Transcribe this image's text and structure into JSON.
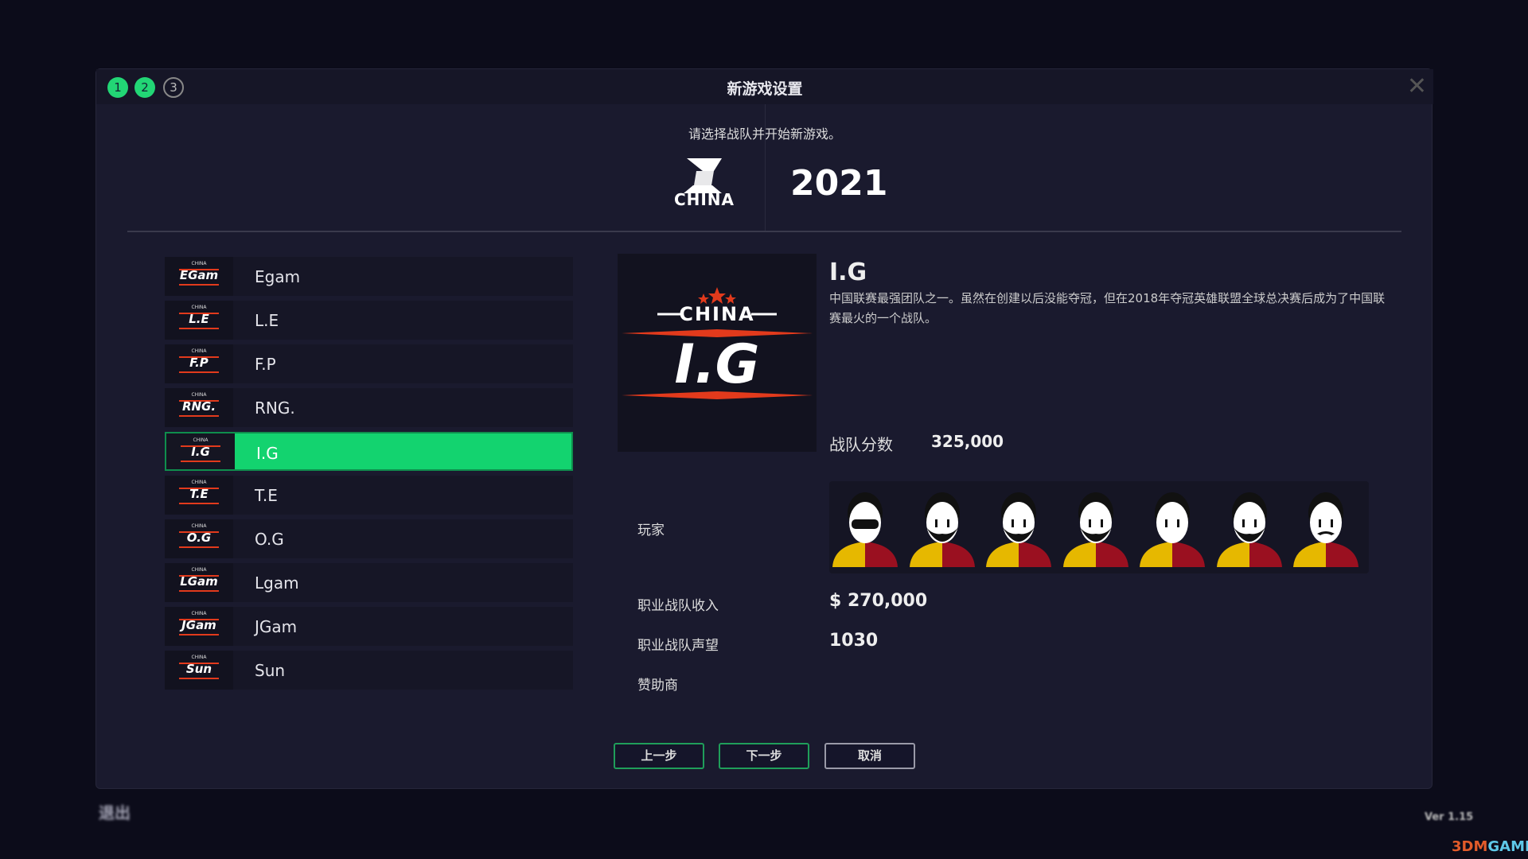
{
  "dialog": {
    "title": "新游戏设置",
    "steps": [
      "1",
      "2",
      "3"
    ],
    "current_step": 2,
    "subtitle": "请选择战队并开始新游戏。",
    "league": {
      "logo_text": "CHINA",
      "year": "2021"
    }
  },
  "teams": [
    {
      "name": "Egam",
      "logo": "EGam"
    },
    {
      "name": "L.E",
      "logo": "L.E"
    },
    {
      "name": "F.P",
      "logo": "F.P"
    },
    {
      "name": "RNG.",
      "logo": "RNG."
    },
    {
      "name": "I.G",
      "logo": "I.G",
      "selected": true
    },
    {
      "name": "T.E",
      "logo": "T.E"
    },
    {
      "name": "O.G",
      "logo": "O.G"
    },
    {
      "name": "Lgam",
      "logo": "LGam"
    },
    {
      "name": "JGam",
      "logo": "JGam"
    },
    {
      "name": "Sun",
      "logo": "Sun"
    }
  ],
  "detail": {
    "logo_top": "CHINA",
    "logo_main": "I.G",
    "name": "I.G",
    "description": "中国联赛最强团队之一。虽然在创建以后没能夺冠，但在2018年夺冠英雄联盟全球总决赛后成为了中国联赛最火的一个战队。",
    "score_label": "战队分数",
    "score": "325,000",
    "players_label": "玩家",
    "player_count": 7,
    "income_label": "职业战队收入",
    "income": "$ 270,000",
    "reputation_label": "职业战队声望",
    "reputation": "1030",
    "sponsor_label": "赞助商"
  },
  "buttons": {
    "prev": "上一步",
    "next": "下一步",
    "cancel": "取消"
  },
  "footer": {
    "exit": "退出",
    "version": "Ver 1.15",
    "watermark_a": "3DM",
    "watermark_b": "GAME"
  },
  "colors": {
    "accent": "#13d36f",
    "background": "#1a1a2e",
    "team_red": "#e23a1c",
    "shirt_yellow": "#e6b800",
    "shirt_red": "#9a1020"
  }
}
